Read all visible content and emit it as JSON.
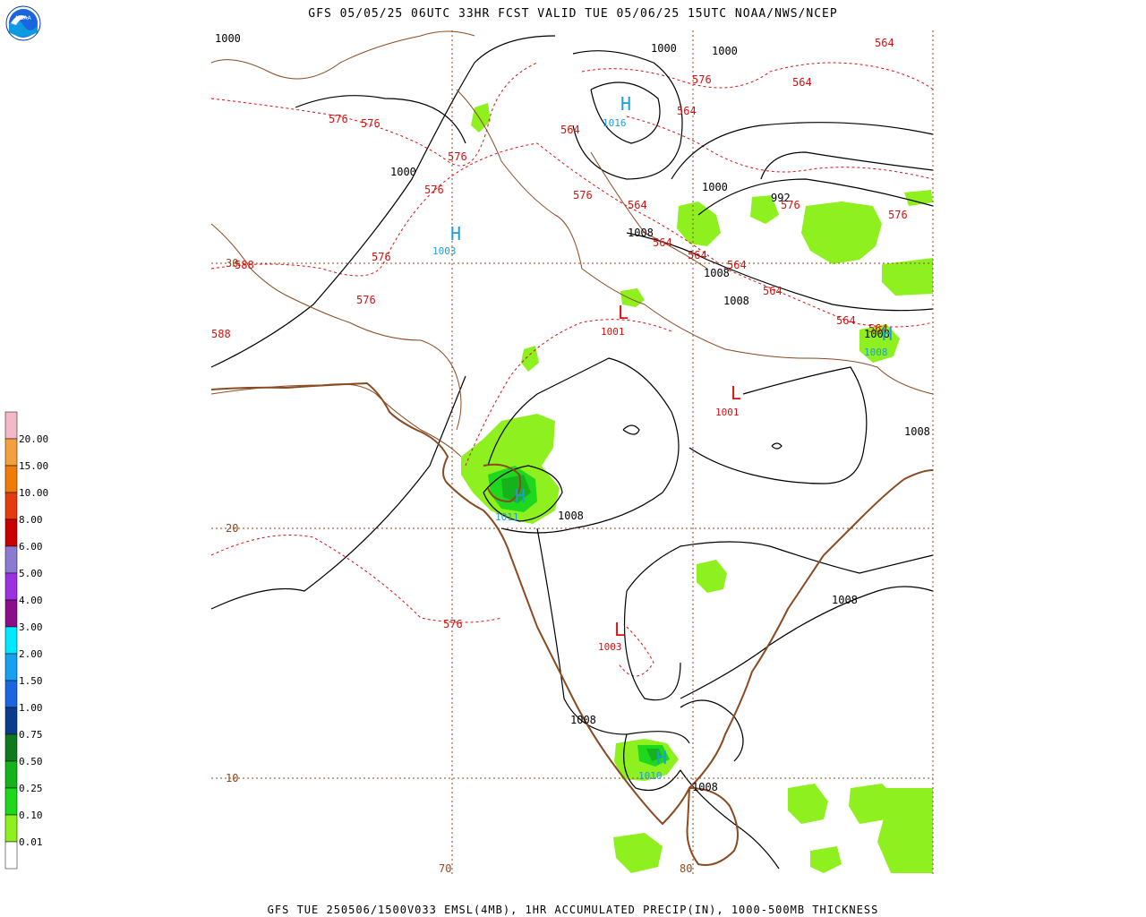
{
  "header": {
    "title": "GFS 05/05/25 06UTC 33HR FCST VALID TUE 05/06/25 15UTC NOAA/NWS/NCEP"
  },
  "footer": {
    "text": "GFS TUE 250506/1500V033 EMSL(4MB), 1HR ACCUMULATED PRECIP(IN), 1000-500MB THICKNESS"
  },
  "logo": {
    "text": "NOAA"
  },
  "legend": {
    "items": [
      {
        "label": "20.00",
        "color": "#f4b8c8"
      },
      {
        "label": "15.00",
        "color": "#f4a040"
      },
      {
        "label": "10.00",
        "color": "#ef7b08"
      },
      {
        "label": "8.00",
        "color": "#e43c10"
      },
      {
        "label": "6.00",
        "color": "#c80000"
      },
      {
        "label": "5.00",
        "color": "#8c7ad0"
      },
      {
        "label": "4.00",
        "color": "#9a32e0"
      },
      {
        "label": "3.00",
        "color": "#8a0e8a"
      },
      {
        "label": "2.00",
        "color": "#00e8ff"
      },
      {
        "label": "1.50",
        "color": "#18a0f0"
      },
      {
        "label": "1.00",
        "color": "#1a66e0"
      },
      {
        "label": "0.75",
        "color": "#0a3c8c"
      },
      {
        "label": "0.50",
        "color": "#0e7a1e"
      },
      {
        "label": "0.25",
        "color": "#16b21c"
      },
      {
        "label": "0.10",
        "color": "#1ed81e"
      },
      {
        "label": "0.01",
        "color": "#8ef01e"
      },
      {
        "label": "",
        "color": "#ffffff"
      }
    ]
  },
  "grid": {
    "lat_labels": [
      "30",
      "20",
      "10"
    ],
    "lon_labels": [
      "70",
      "80"
    ]
  },
  "pressure_labels": [
    "1000",
    "1000",
    "1000",
    "1000",
    "992",
    "1008",
    "1008",
    "1008",
    "1008",
    "1008",
    "1008",
    "1008",
    "1008",
    "1008"
  ],
  "highs": [
    {
      "symbol": "H",
      "value": "1003"
    },
    {
      "symbol": "H",
      "value": "1016"
    },
    {
      "symbol": "H",
      "value": "1011"
    },
    {
      "symbol": "H",
      "value": "1010"
    },
    {
      "symbol": "H",
      "value": "1008"
    }
  ],
  "lows": [
    {
      "symbol": "L",
      "value": "1001"
    },
    {
      "symbol": "L",
      "value": "1001"
    },
    {
      "symbol": "L",
      "value": "1003"
    }
  ],
  "thickness_labels": [
    "576",
    "576",
    "576",
    "576",
    "576",
    "576",
    "576",
    "576",
    "576",
    "564",
    "564",
    "564",
    "564",
    "564",
    "564",
    "564",
    "564",
    "564",
    "564",
    "564",
    "588",
    "588"
  ],
  "colors": {
    "isobar": "#000000",
    "thickness": "#d81010",
    "coast": "#8a4a22",
    "grid": "#8a4a22",
    "high": "#1aa0d8",
    "low": "#d81010"
  }
}
